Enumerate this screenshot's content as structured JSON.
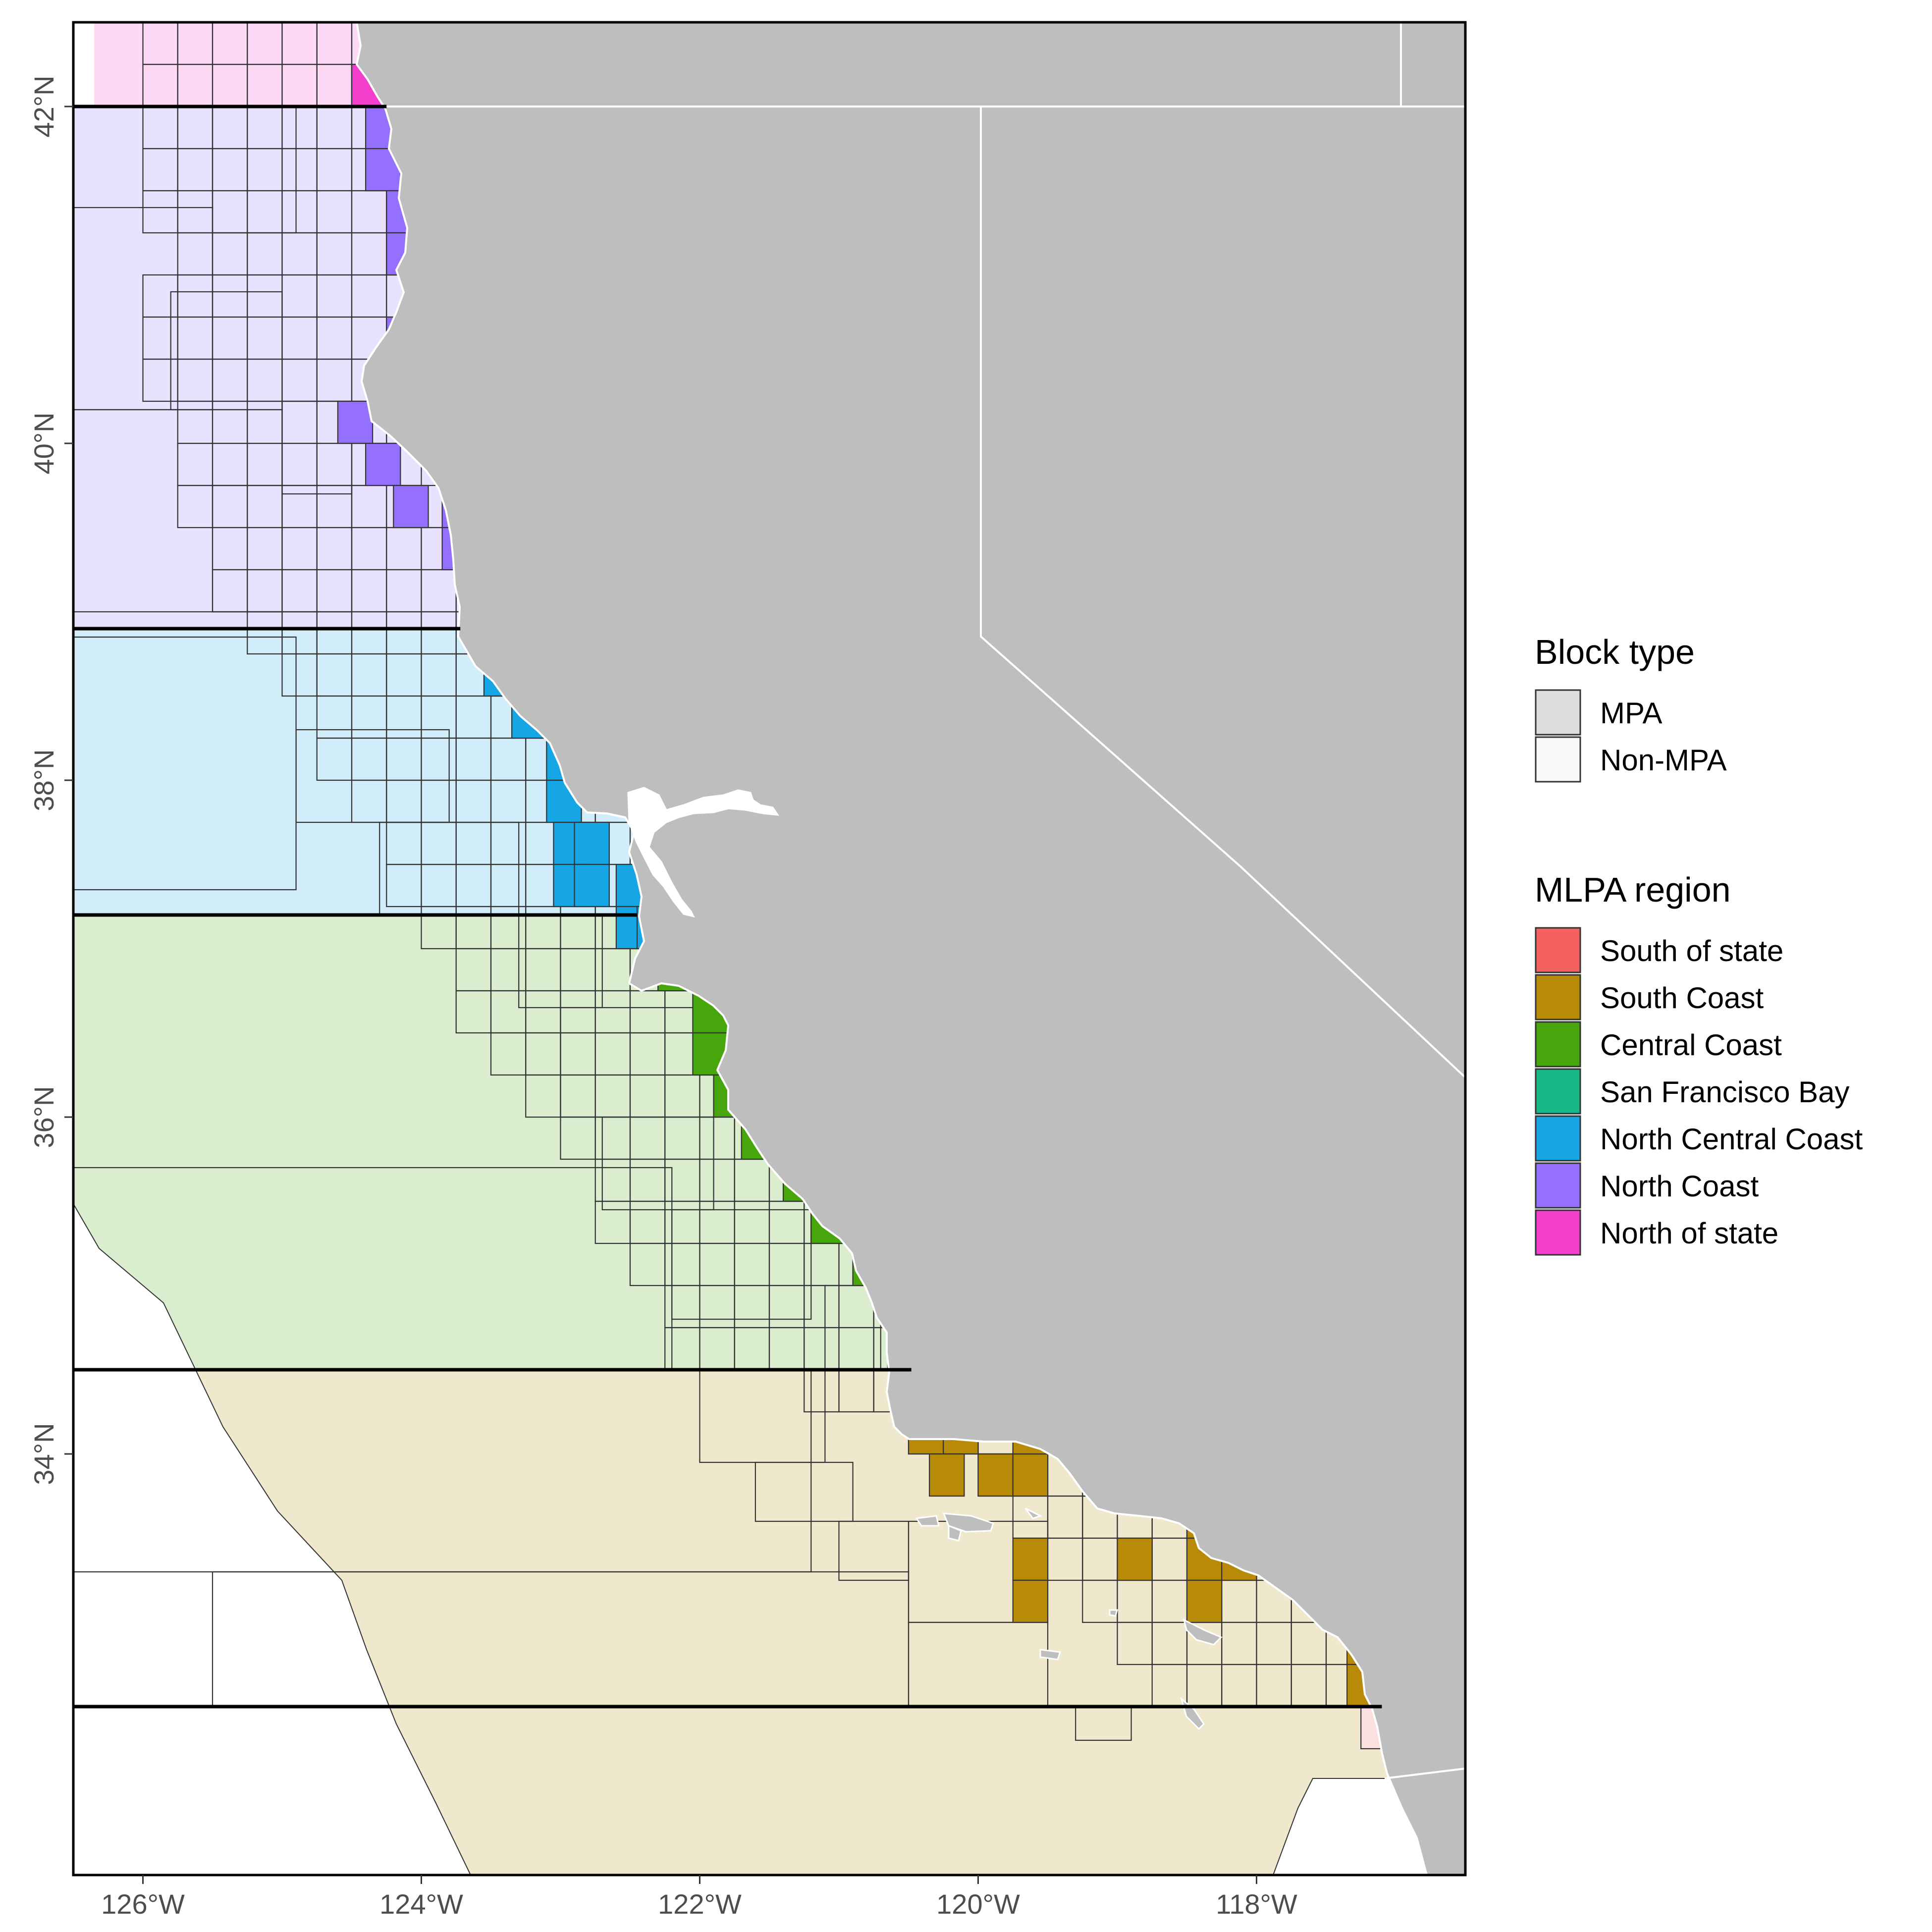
{
  "map": {
    "extent": {
      "lon": [
        -126.5,
        -116.5
      ],
      "lat": [
        31.5,
        42.5
      ]
    },
    "land_color": "#BEBEBE",
    "state_line_color": "#FFFFFF",
    "block_outline_color": "#333333",
    "region_boundary_color": "#000000",
    "x_ticks": [
      {
        "lon": -126,
        "label": "126°W"
      },
      {
        "lon": -124,
        "label": "124°W"
      },
      {
        "lon": -122,
        "label": "122°W"
      },
      {
        "lon": -120,
        "label": "120°W"
      },
      {
        "lon": -118,
        "label": "118°W"
      }
    ],
    "y_ticks": [
      {
        "lat": 42,
        "label": "42°N"
      },
      {
        "lat": 40,
        "label": "40°N"
      },
      {
        "lat": 38,
        "label": "38°N"
      },
      {
        "lat": 36,
        "label": "36°N"
      },
      {
        "lat": 34,
        "label": "34°N"
      }
    ],
    "region_boundaries_lat": [
      42.0,
      38.9,
      37.2,
      34.5,
      32.5
    ],
    "regions": [
      {
        "name": "North of state",
        "color": "#F43FCC",
        "light": "#FDD9F5",
        "lat_top": 42.5,
        "lat_bottom": 42.0
      },
      {
        "name": "North Coast",
        "color": "#9570FF",
        "light": "#E9E2FF",
        "lat_top": 42.0,
        "lat_bottom": 38.9
      },
      {
        "name": "North Central Coast",
        "color": "#16A6E5",
        "light": "#D0EDF9",
        "lat_top": 38.9,
        "lat_bottom": 37.2
      },
      {
        "name": "San Francisco Bay",
        "color": "#16B886",
        "light": "#D3F1E7",
        "lat_top": 38.0,
        "lat_bottom": 37.4
      },
      {
        "name": "Central Coast",
        "color": "#47A60B",
        "light": "#DAEDCE",
        "lat_top": 37.2,
        "lat_bottom": 34.5
      },
      {
        "name": "South Coast",
        "color": "#B78B07",
        "light": "#EFE8CD",
        "lat_top": 34.5,
        "lat_bottom": 32.5
      },
      {
        "name": "South of state",
        "color": "#F3625E",
        "light": "#FCDFDF",
        "lat_top": 32.5,
        "lat_bottom": 31.5
      }
    ]
  },
  "legend": {
    "block_type": {
      "title": "Block type",
      "items": [
        {
          "label": "MPA",
          "fill": "#DDDDDD"
        },
        {
          "label": "Non-MPA",
          "fill": "#F8F8F8"
        }
      ]
    },
    "mlpa_region": {
      "title": "MLPA region",
      "items": [
        {
          "label": "South of state",
          "color": "#F3625E"
        },
        {
          "label": "South Coast",
          "color": "#B78B07"
        },
        {
          "label": "Central Coast",
          "color": "#47A60B"
        },
        {
          "label": "San Francisco Bay",
          "color": "#16B886"
        },
        {
          "label": "North Central Coast",
          "color": "#16A6E5"
        },
        {
          "label": "North Coast",
          "color": "#9570FF"
        },
        {
          "label": "North of state",
          "color": "#F43FCC"
        }
      ]
    }
  }
}
